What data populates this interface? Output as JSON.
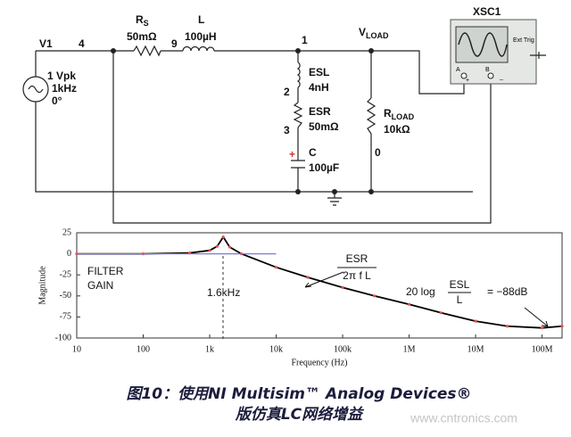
{
  "circuit": {
    "source": {
      "name": "V1",
      "amplitude": "1 Vpk",
      "frequency": "1kHz",
      "phase": "0°"
    },
    "nodes": [
      "4",
      "9",
      "1",
      "2",
      "3",
      "0"
    ],
    "rs": {
      "name": "R",
      "sub": "S",
      "value": "50mΩ"
    },
    "l": {
      "name": "L",
      "value": "100µH"
    },
    "vload": {
      "name": "V",
      "sub": "LOAD"
    },
    "esl": {
      "name": "ESL",
      "value": "4nH"
    },
    "esr": {
      "name": "ESR",
      "value": "50mΩ"
    },
    "c": {
      "name": "C",
      "value": "100µF",
      "polarity": "+"
    },
    "rload": {
      "name": "R",
      "sub": "LOAD",
      "value": "10kΩ"
    },
    "scope": {
      "name": "XSC1",
      "trigger": "Ext Trig",
      "channel_a": "A",
      "channel_b": "B",
      "plus": "+",
      "minus": "_"
    }
  },
  "chart_data": {
    "type": "line",
    "xlabel": "Frequency (Hz)",
    "ylabel": "Magnitude",
    "xscale": "log",
    "xlim": [
      10,
      200000000
    ],
    "xticks": [
      10,
      100,
      {
        "value": 1000,
        "label": "1k"
      },
      {
        "value": 10000,
        "label": "10k"
      },
      {
        "value": 100000,
        "label": "100k"
      },
      {
        "value": 1000000,
        "label": "1M"
      },
      {
        "value": 10000000,
        "label": "10M"
      },
      {
        "value": 100000000,
        "label": "100M"
      }
    ],
    "ylim": [
      -100,
      25
    ],
    "yticks": [
      25,
      0,
      -25,
      -50,
      -75,
      -100
    ],
    "grid": false,
    "series": [
      {
        "color": "#000000",
        "marker_color": "#e05050",
        "markers": true,
        "x": [
          10,
          100,
          500,
          1000,
          1300,
          1600,
          2000,
          3000,
          10000,
          30000,
          100000,
          300000,
          1000000,
          3000000,
          10000000,
          30000000,
          100000000,
          200000000
        ],
        "values": [
          0,
          0,
          1,
          4,
          9,
          20,
          8,
          0,
          -16,
          -28,
          -40,
          -50,
          -60,
          -70,
          -80,
          -86,
          -88,
          -86
        ]
      },
      {
        "color": "#7b7bd6",
        "markers": false,
        "x": [
          10,
          10000
        ],
        "values": [
          0,
          0
        ]
      }
    ],
    "annotations": {
      "filter": "FILTER",
      "gain": "GAIN",
      "resonance": "1.6kHz",
      "esr_num": "ESR",
      "esr_den": "2π f L",
      "log": "20 log",
      "esl_num": "ESL",
      "esl_den": "L",
      "result": "= −88dB"
    }
  },
  "caption": [
    "图10：使用NI Multisim™ Analog Devices®",
    "版仿真LC网络增益"
  ],
  "watermark": "www.cntronics.com"
}
